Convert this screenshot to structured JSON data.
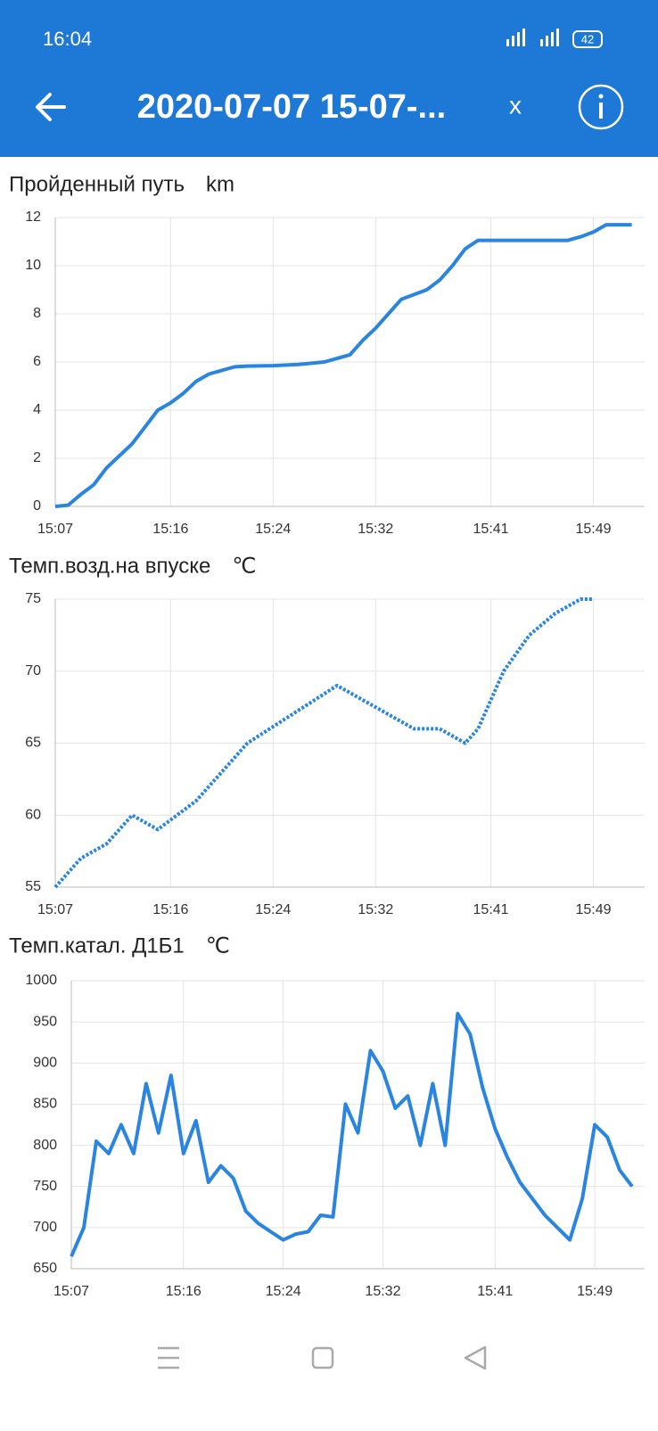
{
  "status_bar": {
    "time": "16:04",
    "battery": "42"
  },
  "header": {
    "title": "2020-07-07 15-07-...",
    "close": "x"
  },
  "chart_data": [
    {
      "type": "line",
      "title": "Пройденный путь",
      "unit": "km",
      "color": "#2a85e0",
      "line_style": "solid",
      "grid": true,
      "x": [
        "15:07",
        "15:08",
        "15:09",
        "15:10",
        "15:11",
        "15:12",
        "15:13",
        "15:14",
        "15:15",
        "15:16",
        "15:17",
        "15:18",
        "15:19",
        "15:20",
        "15:21",
        "15:22",
        "15:24",
        "15:26",
        "15:28",
        "15:30",
        "15:31",
        "15:32",
        "15:33",
        "15:34",
        "15:35",
        "15:36",
        "15:37",
        "15:38",
        "15:39",
        "15:40",
        "15:42",
        "15:47",
        "15:48",
        "15:49",
        "15:50",
        "15:52"
      ],
      "values": [
        0,
        0.05,
        0.5,
        0.9,
        1.6,
        2.1,
        2.6,
        3.3,
        4.0,
        4.3,
        4.7,
        5.2,
        5.5,
        5.65,
        5.8,
        5.83,
        5.85,
        5.9,
        6.0,
        6.3,
        6.9,
        7.4,
        8.0,
        8.6,
        8.8,
        9.0,
        9.4,
        10.0,
        10.7,
        11.05,
        11.05,
        11.05,
        11.2,
        11.4,
        11.7,
        11.7
      ],
      "xlim": [
        "15:07",
        "15:53"
      ],
      "xticks": [
        "15:07",
        "15:16",
        "15:24",
        "15:32",
        "15:41",
        "15:49"
      ],
      "ylim": [
        0,
        12
      ],
      "yticks": [
        0,
        2,
        4,
        6,
        8,
        10,
        12
      ]
    },
    {
      "type": "line",
      "title": "Темп.возд.на впуске",
      "unit": "℃",
      "color": "#2a85e0",
      "line_style": "dotted",
      "grid": true,
      "x": [
        "15:07",
        "15:09",
        "15:11",
        "15:13",
        "15:15",
        "15:18",
        "15:22",
        "15:29",
        "15:35",
        "15:37",
        "15:39",
        "15:40",
        "15:42",
        "15:44",
        "15:46",
        "15:48",
        "15:49"
      ],
      "values": [
        55,
        57,
        58,
        60,
        59,
        61,
        65,
        69,
        66,
        66,
        65,
        66,
        70,
        72.5,
        74,
        75,
        75
      ],
      "xlim": [
        "15:07",
        "15:53"
      ],
      "xticks": [
        "15:07",
        "15:16",
        "15:24",
        "15:32",
        "15:41",
        "15:49"
      ],
      "ylim": [
        55,
        75
      ],
      "yticks": [
        55,
        60,
        65,
        70,
        75
      ]
    },
    {
      "type": "line",
      "title": "Темп.катал. Д1Б1",
      "unit": "℃",
      "color": "#2a85e0",
      "line_style": "solid",
      "grid": true,
      "x": [
        "15:07",
        "15:08",
        "15:09",
        "15:10",
        "15:11",
        "15:12",
        "15:13",
        "15:14",
        "15:15",
        "15:16",
        "15:17",
        "15:18",
        "15:19",
        "15:20",
        "15:21",
        "15:22",
        "15:23",
        "15:24",
        "15:25",
        "15:26",
        "15:27",
        "15:28",
        "15:29",
        "15:30",
        "15:31",
        "15:32",
        "15:33",
        "15:34",
        "15:35",
        "15:36",
        "15:37",
        "15:38",
        "15:39",
        "15:40",
        "15:41",
        "15:42",
        "15:43",
        "15:44",
        "15:45",
        "15:46",
        "15:47",
        "15:48",
        "15:49",
        "15:50",
        "15:51",
        "15:52"
      ],
      "values": [
        665,
        700,
        805,
        790,
        825,
        790,
        875,
        815,
        885,
        790,
        830,
        755,
        775,
        760,
        720,
        705,
        695,
        685,
        692,
        695,
        715,
        713,
        850,
        815,
        915,
        890,
        845,
        860,
        800,
        875,
        800,
        960,
        935,
        870,
        820,
        785,
        755,
        735,
        715,
        700,
        685,
        735,
        825,
        810,
        770,
        750
      ],
      "xlim": [
        "15:07",
        "15:53"
      ],
      "xticks": [
        "15:07",
        "15:16",
        "15:24",
        "15:32",
        "15:41",
        "15:49"
      ],
      "ylim": [
        650,
        1000
      ],
      "yticks": [
        650,
        700,
        750,
        800,
        850,
        900,
        950,
        1000
      ]
    }
  ]
}
